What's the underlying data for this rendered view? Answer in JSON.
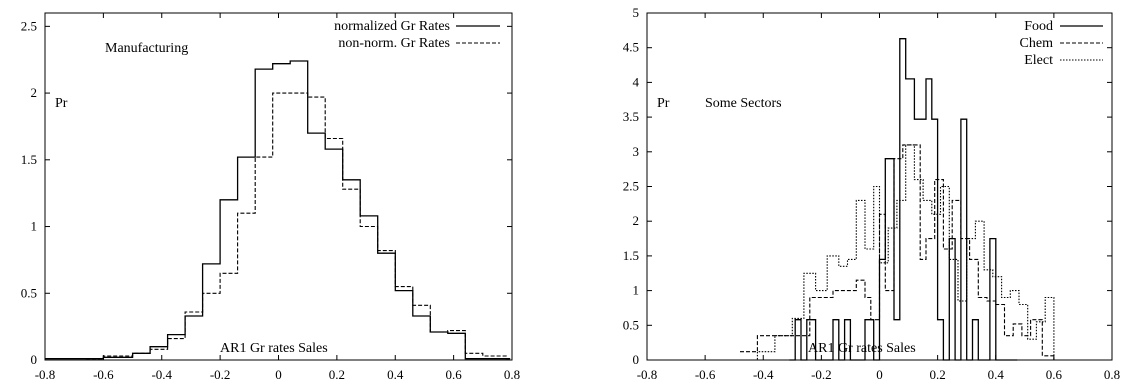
{
  "chart_data": [
    {
      "type": "step",
      "title": "",
      "xlabel": "",
      "ylabel": "",
      "xlim": [
        -0.8,
        0.8
      ],
      "ylim": [
        0,
        2.6
      ],
      "xticks": [
        "-0.8",
        "-0.6",
        "-0.4",
        "-0.2",
        "0",
        "0.2",
        "0.4",
        "0.6",
        "0.8"
      ],
      "xtick_values": [
        -0.8,
        -0.6,
        -0.4,
        -0.2,
        0,
        0.2,
        0.4,
        0.6,
        0.8
      ],
      "yticks": [
        "0",
        "0.5",
        "1",
        "1.5",
        "2",
        "2.5"
      ],
      "ytick_values": [
        0,
        0.5,
        1,
        1.5,
        2,
        2.5
      ],
      "legend_position": "top-right",
      "annotations": {
        "sector": "Manufacturing",
        "ylab": "Pr",
        "note": "AR1 Gr rates Sales"
      },
      "series": [
        {
          "name": "normalized Gr Rates",
          "style": "solid",
          "x": [
            -0.8,
            -0.66,
            -0.6,
            -0.5,
            -0.44,
            -0.38,
            -0.32,
            -0.26,
            -0.2,
            -0.14,
            -0.08,
            -0.02,
            0.04,
            0.1,
            0.16,
            0.22,
            0.28,
            0.34,
            0.4,
            0.46,
            0.52,
            0.58,
            0.64,
            0.78
          ],
          "y": [
            0.01,
            0.01,
            0.02,
            0.05,
            0.1,
            0.19,
            0.33,
            0.72,
            1.2,
            1.52,
            2.18,
            2.22,
            2.24,
            1.7,
            1.58,
            1.35,
            1.08,
            0.8,
            0.52,
            0.33,
            0.21,
            0.2,
            0.01,
            0.01
          ]
        },
        {
          "name": "non-norm. Gr Rates",
          "style": "dashed",
          "x": [
            -0.66,
            -0.6,
            -0.5,
            -0.44,
            -0.38,
            -0.32,
            -0.26,
            -0.2,
            -0.14,
            -0.08,
            -0.02,
            0.04,
            0.1,
            0.16,
            0.22,
            0.28,
            0.34,
            0.4,
            0.46,
            0.52,
            0.58,
            0.64,
            0.7,
            0.78
          ],
          "y": [
            0.01,
            0.03,
            0.05,
            0.08,
            0.16,
            0.36,
            0.5,
            0.65,
            1.1,
            1.52,
            2.0,
            2.0,
            1.97,
            1.66,
            1.28,
            1.0,
            0.82,
            0.55,
            0.41,
            0.21,
            0.22,
            0.05,
            0.03,
            0.01
          ]
        }
      ]
    },
    {
      "type": "step",
      "title": "",
      "xlabel": "",
      "ylabel": "",
      "xlim": [
        -0.8,
        0.8
      ],
      "ylim": [
        0,
        5
      ],
      "xticks": [
        "-0.8",
        "-0.6",
        "-0.4",
        "-0.2",
        "0",
        "0.2",
        "0.4",
        "0.6",
        "0.8"
      ],
      "xtick_values": [
        -0.8,
        -0.6,
        -0.4,
        -0.2,
        0,
        0.2,
        0.4,
        0.6,
        0.8
      ],
      "yticks": [
        "0",
        "0.5",
        "1",
        "1.5",
        "2",
        "2.5",
        "3",
        "3.5",
        "4",
        "4.5",
        "5"
      ],
      "ytick_values": [
        0,
        0.5,
        1,
        1.5,
        2,
        2.5,
        3,
        3.5,
        4,
        4.5,
        5
      ],
      "legend_position": "top-right",
      "annotations": {
        "sector": "Some Sectors",
        "ylab": "Pr",
        "note": "AR1 Gr rates Sales"
      },
      "series": [
        {
          "name": "Food",
          "style": "solid",
          "x": [
            -0.31,
            -0.29,
            -0.27,
            -0.25,
            -0.22,
            -0.19,
            -0.16,
            -0.14,
            -0.12,
            -0.1,
            -0.08,
            -0.05,
            -0.02,
            0.0,
            0.02,
            0.05,
            0.07,
            0.09,
            0.12,
            0.14,
            0.16,
            0.18,
            0.2,
            0.22,
            0.24,
            0.26,
            0.28,
            0.3,
            0.32,
            0.34,
            0.36,
            0.38,
            0.4,
            0.42,
            0.44,
            0.46
          ],
          "y": [
            0,
            0.58,
            0,
            0.58,
            0,
            0,
            0.58,
            0,
            0.58,
            0,
            0,
            0.58,
            0,
            1.45,
            2.9,
            0.58,
            4.63,
            4.05,
            3.47,
            3.47,
            4.05,
            3.47,
            0.58,
            0,
            1.75,
            0,
            3.47,
            0,
            0.58,
            0,
            0,
            1.75,
            0,
            0,
            0,
            0
          ]
        },
        {
          "name": "Chem",
          "style": "dashed",
          "x": [
            -0.48,
            -0.42,
            -0.36,
            -0.3,
            -0.24,
            -0.2,
            -0.16,
            -0.12,
            -0.08,
            -0.05,
            -0.03,
            0.0,
            0.02,
            0.05,
            0.08,
            0.11,
            0.14,
            0.16,
            0.19,
            0.22,
            0.25,
            0.28,
            0.31,
            0.34,
            0.37,
            0.4,
            0.43,
            0.46,
            0.49,
            0.52,
            0.54,
            0.56,
            0.6
          ],
          "y": [
            0.12,
            0.35,
            0.35,
            0.35,
            0.9,
            0.9,
            1.0,
            1.0,
            1.15,
            0.9,
            0.58,
            2.1,
            1.0,
            2.9,
            3.1,
            3.1,
            1.45,
            1.75,
            2.6,
            1.6,
            2.3,
            1.75,
            1.45,
            0.9,
            0.85,
            0.8,
            0.35,
            0.52,
            0.35,
            0.58,
            0.58,
            0.06,
            0.0
          ]
        },
        {
          "name": "Elect",
          "style": "dotted",
          "x": [
            -0.48,
            -0.42,
            -0.36,
            -0.3,
            -0.26,
            -0.22,
            -0.18,
            -0.14,
            -0.11,
            -0.08,
            -0.05,
            -0.02,
            0.0,
            0.03,
            0.06,
            0.09,
            0.12,
            0.15,
            0.18,
            0.21,
            0.24,
            0.27,
            0.3,
            0.33,
            0.36,
            0.39,
            0.42,
            0.45,
            0.48,
            0.51,
            0.54,
            0.57,
            0.6
          ],
          "y": [
            0.0,
            0.12,
            0.35,
            0.6,
            1.25,
            1.0,
            1.5,
            1.35,
            1.45,
            2.3,
            1.6,
            2.5,
            1.4,
            1.9,
            2.3,
            3.1,
            2.6,
            2.3,
            2.1,
            2.5,
            1.45,
            0.85,
            1.75,
            2.0,
            1.3,
            1.2,
            0.9,
            1.0,
            0.8,
            0.3,
            0.55,
            0.9,
            0.0
          ]
        }
      ]
    }
  ]
}
